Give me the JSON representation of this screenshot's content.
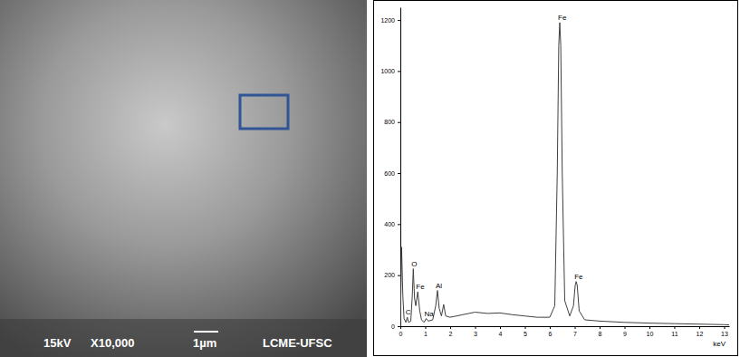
{
  "micrograph": {
    "labels": [
      "15kV",
      "X10,000",
      "1µm",
      "LCME-UFSC"
    ]
  },
  "chart_data": {
    "type": "line",
    "x_label": "keV",
    "x": [
      0,
      0.05,
      0.1,
      0.15,
      0.22,
      0.28,
      0.33,
      0.42,
      0.48,
      0.52,
      0.57,
      0.62,
      0.7,
      0.78,
      0.85,
      0.95,
      1.04,
      1.12,
      1.3,
      1.42,
      1.49,
      1.56,
      1.65,
      1.74,
      1.82,
      2.0,
      2.5,
      3.0,
      3.5,
      4.0,
      4.5,
      5.0,
      5.5,
      6.0,
      6.2,
      6.3,
      6.36,
      6.4,
      6.44,
      6.5,
      6.6,
      6.8,
      6.95,
      7.02,
      7.06,
      7.1,
      7.18,
      7.4,
      8,
      9,
      10,
      11,
      12,
      13,
      13.2
    ],
    "values": [
      0,
      310,
      120,
      30,
      15,
      35,
      15,
      20,
      120,
      225,
      110,
      80,
      135,
      60,
      25,
      15,
      30,
      20,
      25,
      80,
      140,
      70,
      40,
      85,
      40,
      35,
      45,
      55,
      50,
      52,
      45,
      40,
      35,
      35,
      80,
      600,
      1100,
      1190,
      1100,
      600,
      100,
      40,
      80,
      160,
      175,
      160,
      60,
      25,
      20,
      15,
      12,
      10,
      8,
      6,
      5
    ],
    "color": "#404040",
    "xlim": [
      0,
      13.2
    ],
    "xticks": [
      0,
      1,
      2,
      3,
      4,
      5,
      6,
      7,
      8,
      9,
      10,
      11,
      12,
      13
    ],
    "ylim": [
      0,
      1250
    ],
    "yticks": [
      0,
      200,
      400,
      600,
      800,
      1000,
      1200
    ],
    "grid": false,
    "annotations": [
      {
        "text": "C",
        "x": 0.28,
        "y": 35
      },
      {
        "text": "O",
        "x": 0.52,
        "y": 225
      },
      {
        "text": "Fe",
        "x": 0.7,
        "y": 135
      },
      {
        "text": "Na",
        "x": 1.04,
        "y": 30
      },
      {
        "text": "Al",
        "x": 1.49,
        "y": 140
      },
      {
        "text": "Fe",
        "x": 6.4,
        "y": 1190
      },
      {
        "text": "Fe",
        "x": 7.06,
        "y": 175
      }
    ]
  }
}
